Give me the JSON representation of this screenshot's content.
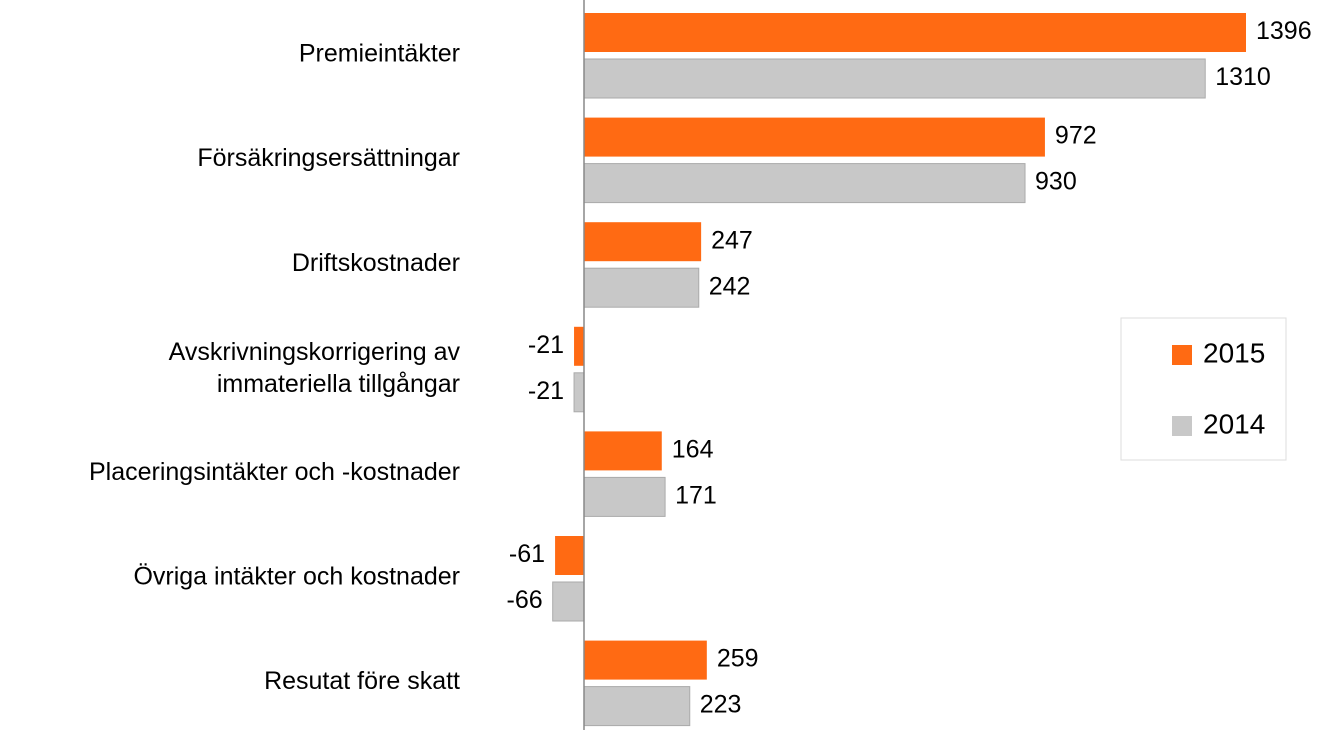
{
  "chart_data": {
    "type": "bar",
    "orientation": "horizontal",
    "categories": [
      "Premieintäkter",
      "Försäkringsersättningar",
      "Driftskostnader",
      "Avskrivningskorrigering av\nimmateriella tillgångar",
      "Placeringsintäkter och -kostnader",
      "Övriga intäkter och kostnader",
      "Resutat före skatt"
    ],
    "series": [
      {
        "name": "2015",
        "color": "#ff6a13",
        "values": [
          1396,
          972,
          247,
          -21,
          164,
          -61,
          259
        ]
      },
      {
        "name": "2014",
        "color": "#c8c8c8",
        "values": [
          1310,
          930,
          242,
          -21,
          171,
          -66,
          223
        ]
      }
    ],
    "legend": "right"
  }
}
